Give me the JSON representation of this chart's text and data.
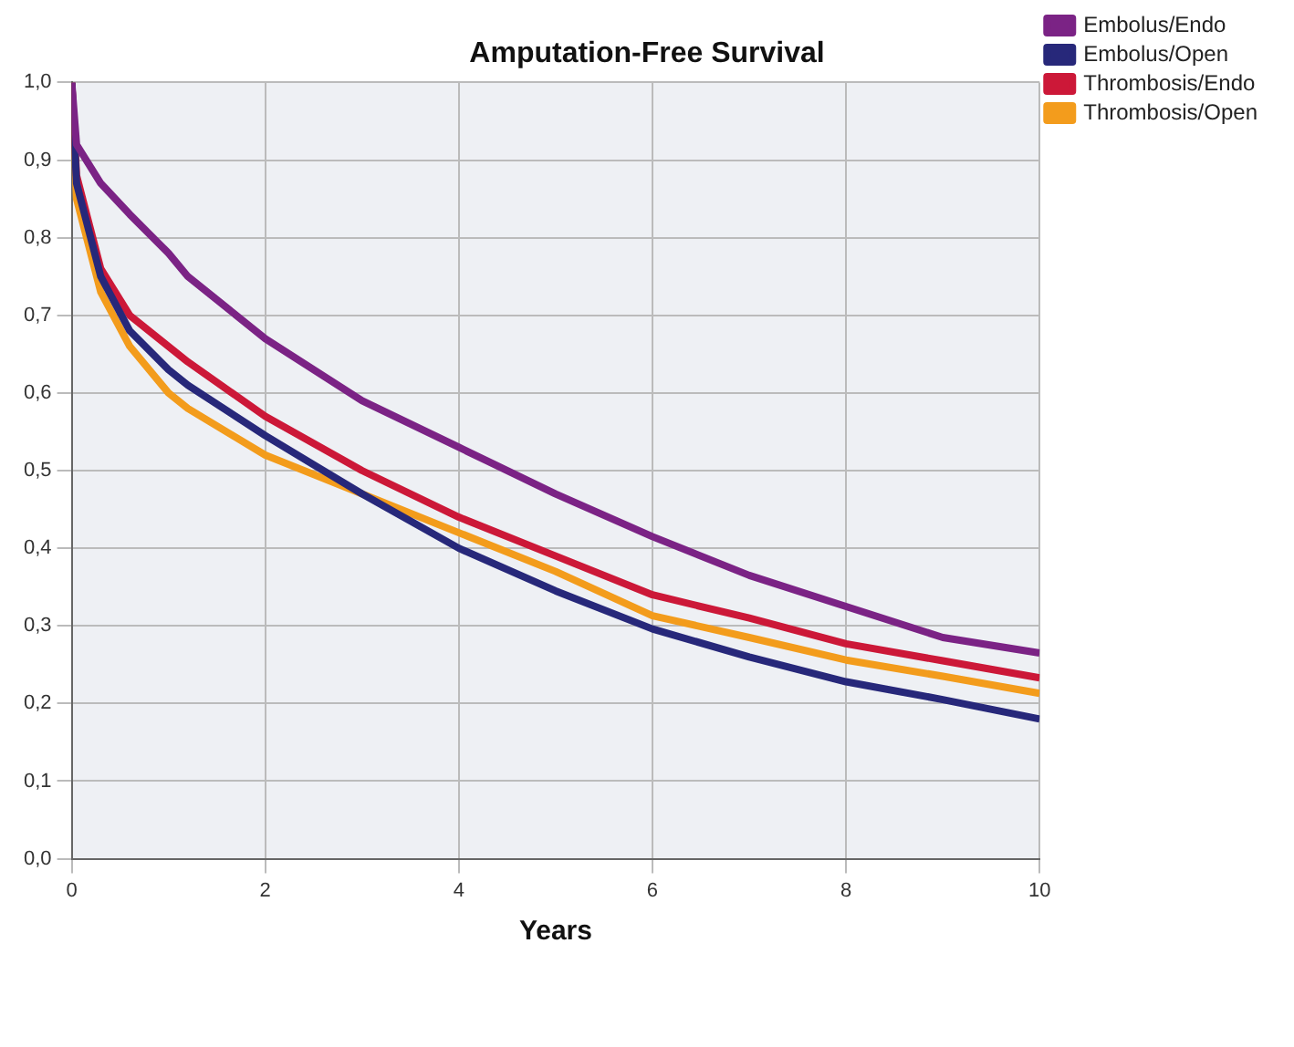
{
  "chart_data": {
    "type": "line",
    "title": "Amputation-Free Survival",
    "xlabel": "Years",
    "x": [
      0,
      0.05,
      0.3,
      0.6,
      1,
      1.2,
      2,
      3,
      4,
      5,
      6,
      7,
      8,
      9,
      10
    ],
    "series": [
      {
        "name": "Embolus/Endo",
        "color": "#7b2385",
        "values": [
          1,
          0.92,
          0.87,
          0.83,
          0.78,
          0.75,
          0.67,
          0.59,
          0.53,
          0.47,
          0.415,
          0.365,
          0.325,
          0.285,
          0.265
        ]
      },
      {
        "name": "Embolus/Open",
        "color": "#27287a",
        "values": [
          1,
          0.87,
          0.75,
          0.68,
          0.63,
          0.61,
          0.545,
          0.47,
          0.4,
          0.345,
          0.296,
          0.26,
          0.228,
          0.205,
          0.18
        ]
      },
      {
        "name": "Thrombosis/Endo",
        "color": "#cc1838",
        "values": [
          1,
          0.88,
          0.76,
          0.7,
          0.66,
          0.64,
          0.57,
          0.5,
          0.44,
          0.39,
          0.34,
          0.31,
          0.277,
          0.255,
          0.233
        ]
      },
      {
        "name": "Thrombosis/Open",
        "color": "#f39c1c",
        "values": [
          1,
          0.85,
          0.73,
          0.66,
          0.6,
          0.58,
          0.52,
          0.47,
          0.42,
          0.37,
          0.313,
          0.285,
          0.256,
          0.235,
          0.213
        ]
      }
    ],
    "xlim": [
      0,
      10
    ],
    "xticks": [
      0,
      2,
      4,
      6,
      8,
      10
    ],
    "ylim": [
      0,
      1
    ],
    "yticks": [
      {
        "value": 0,
        "label": "0,0"
      },
      {
        "value": 0.1,
        "label": "0,1"
      },
      {
        "value": 0.2,
        "label": "0,2"
      },
      {
        "value": 0.3,
        "label": "0,3"
      },
      {
        "value": 0.4,
        "label": "0,4"
      },
      {
        "value": 0.5,
        "label": "0,5"
      },
      {
        "value": 0.6,
        "label": "0,6"
      },
      {
        "value": 0.7,
        "label": "0,7"
      },
      {
        "value": 0.8,
        "label": "0,8"
      },
      {
        "value": 0.9,
        "label": "0,9"
      },
      {
        "value": 1,
        "label": "1,0"
      }
    ],
    "grid": true,
    "legend": "right",
    "marker": "none",
    "line_style": "solid"
  }
}
